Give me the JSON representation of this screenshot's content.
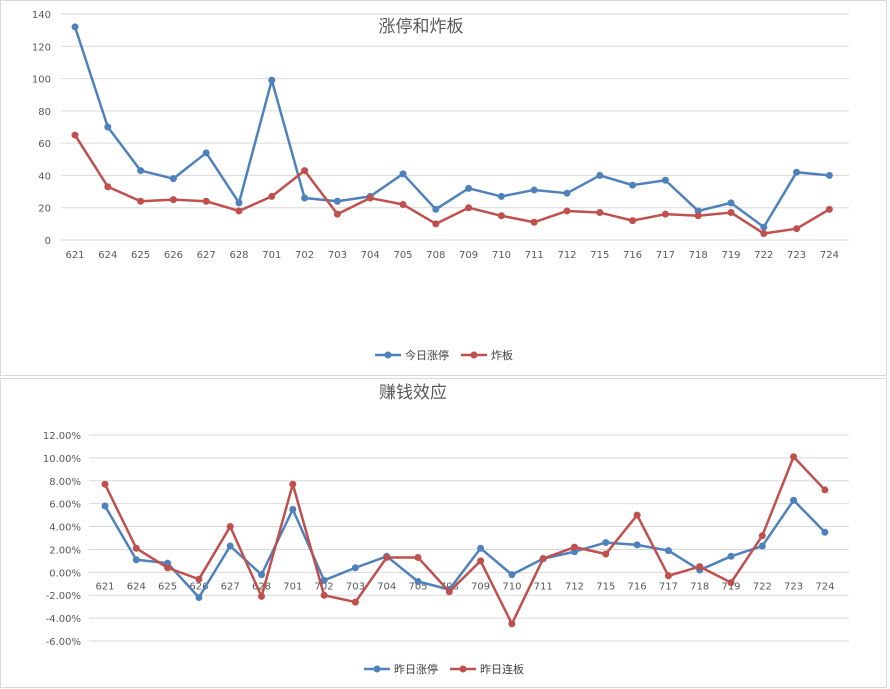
{
  "colors": {
    "blue": "#4F81BD",
    "red": "#C0504D"
  },
  "chart_data": [
    {
      "type": "line",
      "title": "涨停和炸板",
      "categories": [
        "621",
        "624",
        "625",
        "626",
        "627",
        "628",
        "701",
        "702",
        "703",
        "704",
        "705",
        "708",
        "709",
        "710",
        "711",
        "712",
        "715",
        "716",
        "717",
        "718",
        "719",
        "722",
        "723",
        "724"
      ],
      "series": [
        {
          "name": "今日涨停",
          "color": "#4F81BD",
          "values": [
            132,
            70,
            43,
            38,
            54,
            23,
            99,
            26,
            24,
            27,
            41,
            19,
            32,
            27,
            31,
            29,
            40,
            34,
            37,
            18,
            23,
            8,
            42,
            40
          ]
        },
        {
          "name": "炸板",
          "color": "#C0504D",
          "values": [
            65,
            33,
            24,
            25,
            24,
            18,
            27,
            43,
            16,
            26,
            22,
            10,
            20,
            15,
            11,
            18,
            17,
            12,
            16,
            15,
            17,
            4,
            7,
            19
          ]
        }
      ],
      "ylim": [
        0,
        140
      ],
      "yticks": [
        "0",
        "20",
        "40",
        "60",
        "80",
        "100",
        "120",
        "140"
      ],
      "grid": true,
      "legend": "bottom"
    },
    {
      "type": "line",
      "title": "赚钱效应",
      "categories": [
        "621",
        "624",
        "625",
        "626",
        "627",
        "628",
        "701",
        "702",
        "703",
        "704",
        "705",
        "708",
        "709",
        "710",
        "711",
        "712",
        "715",
        "716",
        "717",
        "718",
        "719",
        "722",
        "723",
        "724"
      ],
      "series": [
        {
          "name": "昨日涨停",
          "color": "#4F81BD",
          "values": [
            5.8,
            1.1,
            0.8,
            -2.2,
            2.3,
            -0.2,
            5.5,
            -0.7,
            0.4,
            1.4,
            -0.8,
            -1.5,
            2.1,
            -0.2,
            1.2,
            1.8,
            2.6,
            2.4,
            1.9,
            0.2,
            1.4,
            2.3,
            6.3,
            3.5
          ]
        },
        {
          "name": "昨日连板",
          "color": "#C0504D",
          "values": [
            7.7,
            2.1,
            0.4,
            -0.6,
            4.0,
            -2.1,
            7.7,
            -2.0,
            -2.6,
            1.3,
            1.3,
            -1.7,
            1.0,
            -4.5,
            1.2,
            2.2,
            1.6,
            5.0,
            -0.3,
            0.5,
            -0.9,
            3.2,
            10.1,
            7.2
          ]
        }
      ],
      "ylim": [
        -6,
        12
      ],
      "yticks": [
        "-6.00%",
        "-4.00%",
        "-2.00%",
        "0.00%",
        "2.00%",
        "4.00%",
        "6.00%",
        "8.00%",
        "10.00%",
        "12.00%"
      ],
      "grid": true,
      "legend": "bottom"
    }
  ]
}
